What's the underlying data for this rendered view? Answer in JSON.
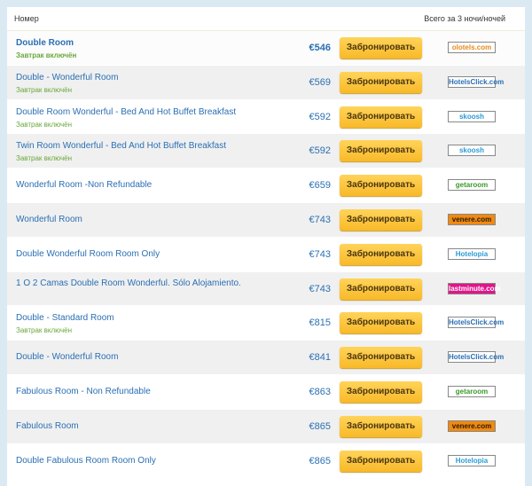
{
  "header": {
    "room_col": "Номер",
    "total_col": "Всего за 3 ночи/ночей"
  },
  "book_label": "Забронировать",
  "rows": [
    {
      "name": "Double Room",
      "sub": "Завтрак включён",
      "price": "€546",
      "provider": "olotels.com",
      "logo_color": "#e58a1f",
      "logo_bg": "#ffffff",
      "bold": true
    },
    {
      "name": "Double - Wonderful Room",
      "sub": "Завтрак включён",
      "price": "€569",
      "provider": "HotelsClick.com",
      "logo_color": "#2a6fb3",
      "logo_bg": "#ffffff"
    },
    {
      "name": "Double Room Wonderful - Bed And Hot Buffet Breakfast",
      "sub": "Завтрак включён",
      "price": "€592",
      "provider": "skoosh",
      "logo_color": "#2a9bd6",
      "logo_bg": "#ffffff"
    },
    {
      "name": "Twin Room Wonderful - Bed And Hot Buffet Breakfast",
      "sub": "Завтрак включён",
      "price": "€592",
      "provider": "skoosh",
      "logo_color": "#2a9bd6",
      "logo_bg": "#ffffff"
    },
    {
      "name": "Wonderful Room -Non Refundable",
      "sub": "",
      "price": "€659",
      "provider": "getaroom",
      "logo_color": "#3a9a2a",
      "logo_bg": "#ffffff"
    },
    {
      "name": "Wonderful Room",
      "sub": "",
      "price": "€743",
      "provider": "venere.com",
      "logo_color": "#2a1a0a",
      "logo_bg": "#f08a10"
    },
    {
      "name": "Double Wonderful Room Room Only",
      "sub": "",
      "price": "€743",
      "provider": "Hotelopia",
      "logo_color": "#2a9bd6",
      "logo_bg": "#ffffff"
    },
    {
      "name": "1 O 2 Camas Double Room Wonderful. Sólo Alojamiento.",
      "sub": "",
      "price": "€743",
      "provider": "lastminute.com",
      "logo_color": "#ffffff",
      "logo_bg": "#e0158a"
    },
    {
      "name": "Double - Standard Room",
      "sub": "Завтрак включён",
      "price": "€815",
      "provider": "HotelsClick.com",
      "logo_color": "#2a6fb3",
      "logo_bg": "#ffffff"
    },
    {
      "name": "Double - Wonderful Room",
      "sub": "",
      "price": "€841",
      "provider": "HotelsClick.com",
      "logo_color": "#2a6fb3",
      "logo_bg": "#ffffff"
    },
    {
      "name": "Fabulous Room - Non Refundable",
      "sub": "",
      "price": "€863",
      "provider": "getaroom",
      "logo_color": "#3a9a2a",
      "logo_bg": "#ffffff"
    },
    {
      "name": "Fabulous Room",
      "sub": "",
      "price": "€865",
      "provider": "venere.com",
      "logo_color": "#2a1a0a",
      "logo_bg": "#f08a10"
    },
    {
      "name": "Double Fabulous Room Room Only",
      "sub": "",
      "price": "€865",
      "provider": "Hotelopia",
      "logo_color": "#2a9bd6",
      "logo_bg": "#ffffff"
    }
  ]
}
